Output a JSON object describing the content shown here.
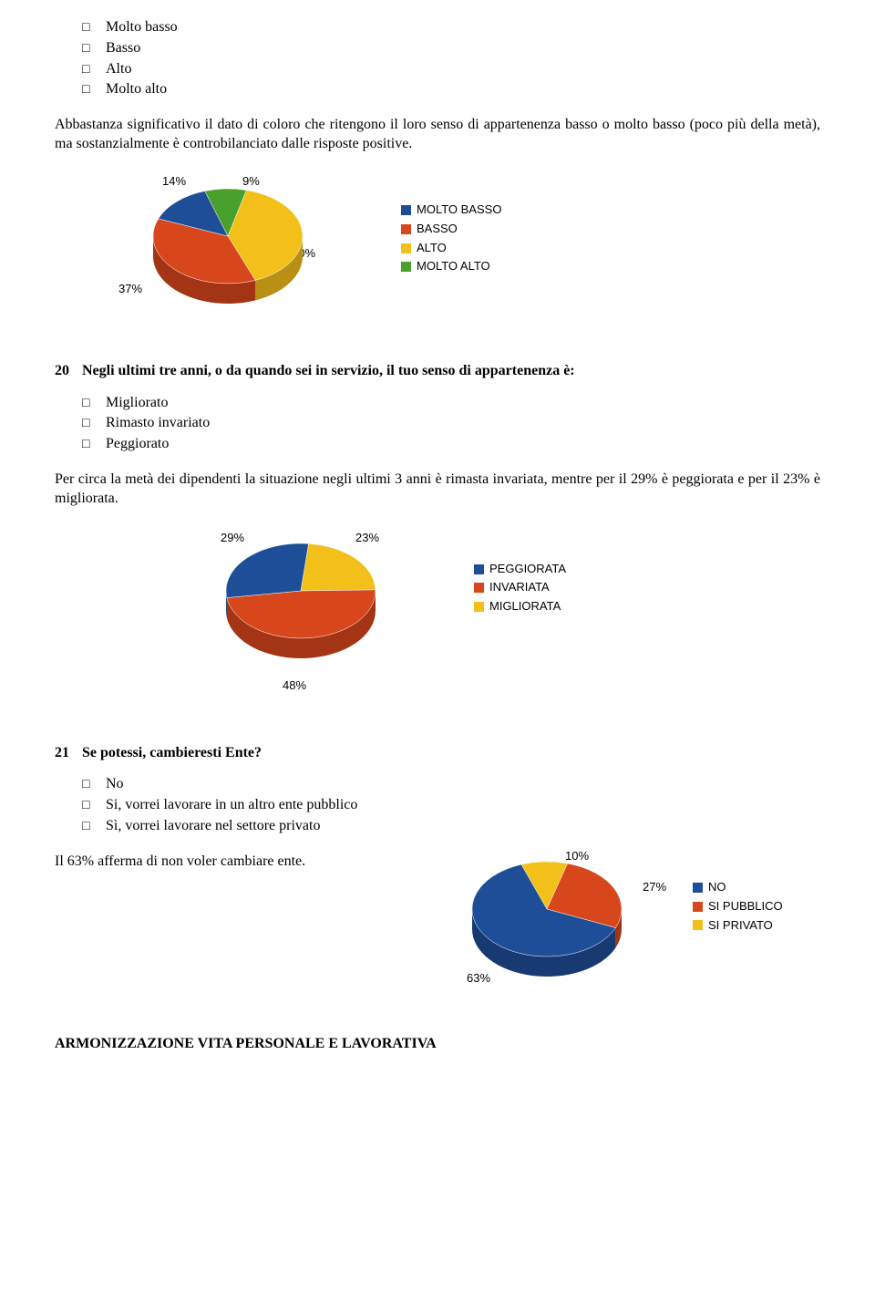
{
  "list1": {
    "items": [
      "Molto basso",
      "Basso",
      "Alto",
      "Molto alto"
    ]
  },
  "para1": "Abbastanza significativo il dato di coloro che ritengono il loro senso di appartenenza basso o molto basso (poco più della metà), ma sostanzialmente è controbilanciato dalle risposte positive.",
  "chart1": {
    "type": "pie",
    "slices": [
      {
        "label": "MOLTO BASSO",
        "value": 14,
        "color": "#1f4e99",
        "dark": "#173a73"
      },
      {
        "label": "BASSO",
        "value": 37,
        "color": "#d8471b",
        "dark": "#a33514"
      },
      {
        "label": "ALTO",
        "value": 40,
        "color": "#f3c01a",
        "dark": "#b89013"
      },
      {
        "label": "MOLTO ALTO",
        "value": 9,
        "color": "#4aa02c",
        "dark": "#387821"
      }
    ],
    "pct_labels": {
      "tl": "14%",
      "tr": "9%",
      "bl": "37%",
      "br": "40%"
    }
  },
  "question20": {
    "num": "20",
    "text": "Negli ultimi tre anni, o da quando sei in servizio, il tuo senso di appartenenza è:",
    "options": [
      "Migliorato",
      "Rimasto invariato",
      "Peggiorato"
    ]
  },
  "para2": "Per circa la metà dei dipendenti la situazione negli ultimi 3 anni è rimasta invariata, mentre per il 29% è peggiorata e per il 23% è migliorata.",
  "chart2": {
    "type": "pie",
    "slices": [
      {
        "label": "PEGGIORATA",
        "value": 29,
        "color": "#1f4e99",
        "dark": "#173a73"
      },
      {
        "label": "INVARIATA",
        "value": 48,
        "color": "#d8471b",
        "dark": "#a33514"
      },
      {
        "label": "MIGLIORATA",
        "value": 23,
        "color": "#f3c01a",
        "dark": "#b89013"
      }
    ],
    "pct_labels": {
      "tl": "29%",
      "tr": "23%",
      "b": "48%"
    }
  },
  "question21": {
    "num": "21",
    "text": "Se potessi, cambieresti Ente?",
    "options": [
      "No",
      "Si, vorrei lavorare in un altro ente pubblico",
      "Sì, vorrei lavorare nel settore privato"
    ]
  },
  "para3": "Il 63% afferma di non voler cambiare ente.",
  "chart3": {
    "type": "pie",
    "slices": [
      {
        "label": "NO",
        "value": 63,
        "color": "#1f4e99",
        "dark": "#173a73"
      },
      {
        "label": "SI PUBBLICO",
        "value": 27,
        "color": "#d8471b",
        "dark": "#a33514"
      },
      {
        "label": "SI PRIVATO",
        "value": 10,
        "color": "#f3c01a",
        "dark": "#b89013"
      }
    ],
    "pct_labels": {
      "t": "10%",
      "r": "27%",
      "bl": "63%"
    }
  },
  "section_title": "ARMONIZZAZIONE VITA PERSONALE E LAVORATIVA"
}
